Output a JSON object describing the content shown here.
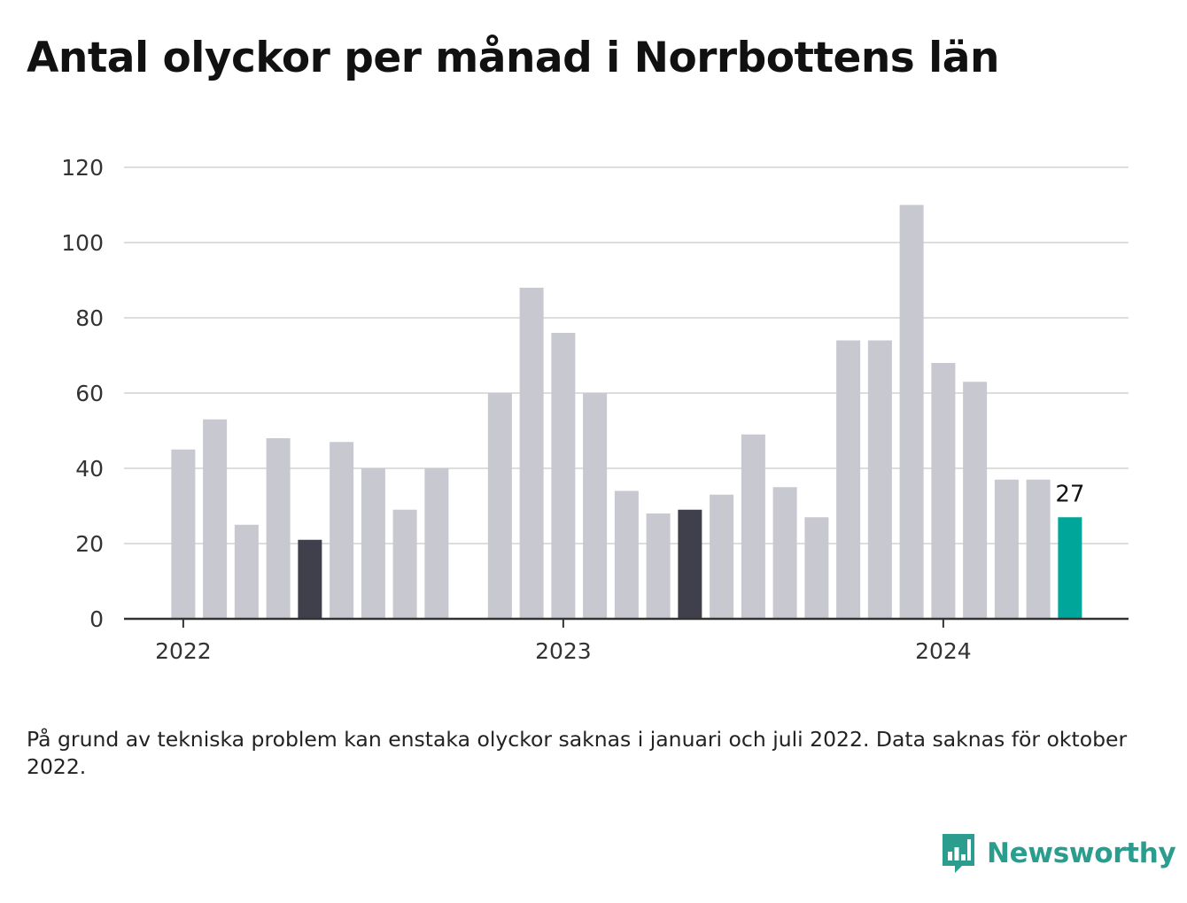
{
  "title": "Antal olyckor per månad i Norrbottens län",
  "note": "På grund av tekniska problem kan enstaka olyckor saknas i januari och juli 2022. Data saknas för oktober 2022.",
  "brand": {
    "name": "Newsworthy",
    "icon": "newsworthy-logo-icon",
    "color": "#2a9d8f"
  },
  "colors": {
    "default_bar": "#c8c8d0",
    "highlight_bar": "#40404c",
    "latest_bar": "#00a69a",
    "grid": "#dddddd",
    "axis": "#333333"
  },
  "chart_data": {
    "type": "bar",
    "title": "Antal olyckor per månad i Norrbottens län",
    "xlabel": "",
    "ylabel": "",
    "ylim": [
      0,
      120
    ],
    "yticks": [
      0,
      20,
      40,
      60,
      80,
      100,
      120
    ],
    "xticks": [
      {
        "label": "2022",
        "month": "2022-01"
      },
      {
        "label": "2023",
        "month": "2023-01"
      },
      {
        "label": "2024",
        "month": "2024-01"
      }
    ],
    "categories": [
      "2022-01",
      "2022-02",
      "2022-03",
      "2022-04",
      "2022-05",
      "2022-06",
      "2022-07",
      "2022-08",
      "2022-09",
      "2022-10",
      "2022-11",
      "2022-12",
      "2023-01",
      "2023-02",
      "2023-03",
      "2023-04",
      "2023-05",
      "2023-06",
      "2023-07",
      "2023-08",
      "2023-09",
      "2023-10",
      "2023-11",
      "2023-12",
      "2024-01",
      "2024-02",
      "2024-03",
      "2024-04",
      "2024-05",
      "2024-06"
    ],
    "values": [
      45,
      53,
      25,
      48,
      21,
      47,
      40,
      29,
      40,
      null,
      60,
      88,
      76,
      60,
      34,
      28,
      29,
      33,
      49,
      35,
      27,
      74,
      74,
      110,
      68,
      63,
      37,
      37,
      27,
      null
    ],
    "highlighted": [
      "2022-05",
      "2023-05"
    ],
    "latest": "2024-05",
    "data_labels": [
      {
        "month": "2024-05",
        "text": "27"
      }
    ],
    "grid": true,
    "legend": "none"
  }
}
